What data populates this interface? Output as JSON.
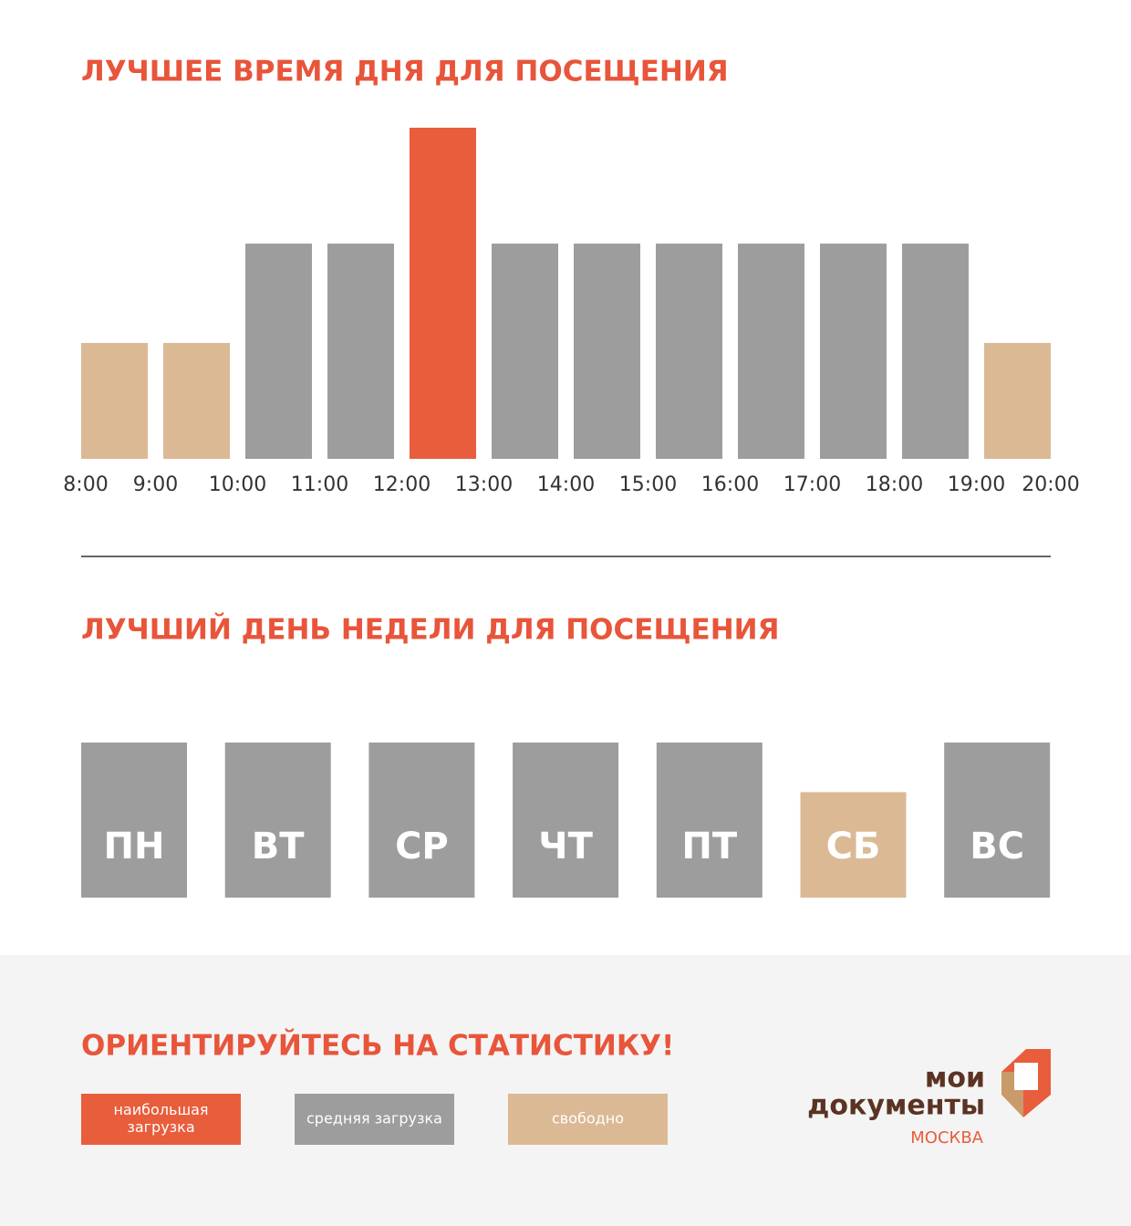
{
  "chart_data": [
    {
      "type": "histogram",
      "title": "ЛУЧШЕЕ ВРЕМЯ ДНЯ ДЛЯ ПОСЕЩЕНИЯ",
      "bins": [
        "8:00",
        "9:00",
        "10:00",
        "11:00",
        "12:00",
        "13:00",
        "14:00",
        "15:00",
        "16:00",
        "17:00",
        "18:00",
        "19:00",
        "20:00"
      ],
      "values": [
        35,
        35,
        65,
        65,
        100,
        65,
        65,
        65,
        65,
        65,
        65,
        35
      ],
      "colors": [
        "#dbb994",
        "#dbb994",
        "#9d9d9d",
        "#9d9d9d",
        "#e85d3c",
        "#9d9d9d",
        "#9d9d9d",
        "#9d9d9d",
        "#9d9d9d",
        "#9d9d9d",
        "#9d9d9d",
        "#dbb994"
      ],
      "ylim": [
        0,
        100
      ]
    },
    {
      "type": "bar",
      "title": "ЛУЧШИЙ ДЕНЬ НЕДЕЛИ ДЛЯ ПОСЕЩЕНИЯ",
      "categories": [
        "ПН",
        "ВТ",
        "СР",
        "ЧТ",
        "ПТ",
        "СБ",
        "ВС"
      ],
      "values": [
        100,
        100,
        100,
        100,
        100,
        68,
        100
      ],
      "colors": [
        "#9d9d9d",
        "#9d9d9d",
        "#9d9d9d",
        "#9d9d9d",
        "#9d9d9d",
        "#dbb994",
        "#9d9d9d"
      ],
      "ylim": [
        0,
        100
      ]
    }
  ],
  "footer": {
    "title": "ОРИЕНТИРУЙТЕСЬ НА СТАТИСТИКУ!",
    "legend": [
      {
        "label": [
          "наибольшая",
          "загрузка"
        ],
        "color": "#e85d3c"
      },
      {
        "label": [
          "средняя загрузка"
        ],
        "color": "#9d9d9d"
      },
      {
        "label": [
          "свободно"
        ],
        "color": "#dbb994"
      }
    ],
    "logo": {
      "line1": "мои",
      "line2": "документы",
      "city": "МОСКВА"
    }
  }
}
